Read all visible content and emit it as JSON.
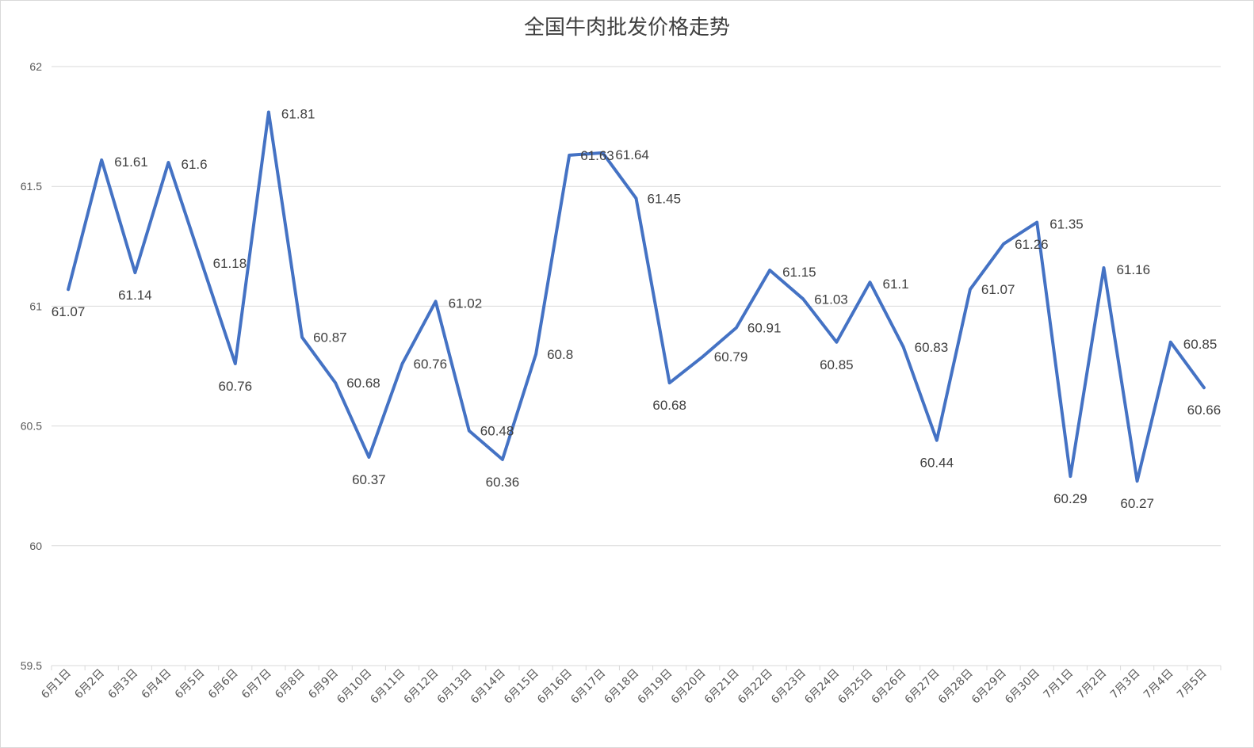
{
  "chart_data": {
    "type": "line",
    "title": "全国牛肉批发价格走势",
    "xlabel": "",
    "ylabel": "",
    "ylim": [
      59.5,
      62
    ],
    "yticks": [
      "59.5",
      "60",
      "60.5",
      "61",
      "61.5",
      "62"
    ],
    "grid": true,
    "legend": "none",
    "categories": [
      "6月1日",
      "6月2日",
      "6月3日",
      "6月4日",
      "6月5日",
      "6月6日",
      "6月7日",
      "6月8日",
      "6月9日",
      "6月10日",
      "6月11日",
      "6月12日",
      "6月13日",
      "6月14日",
      "6月15日",
      "6月16日",
      "6月17日",
      "6月18日",
      "6月19日",
      "6月20日",
      "6月21日",
      "6月22日",
      "6月23日",
      "6月24日",
      "6月25日",
      "6月26日",
      "6月27日",
      "6月28日",
      "6月29日",
      "6月30日",
      "7月1日",
      "7月2日",
      "7月3日",
      "7月4日",
      "7月5日"
    ],
    "series": [
      {
        "values": [
          61.07,
          61.61,
          61.14,
          61.6,
          61.18,
          60.76,
          61.81,
          60.87,
          60.68,
          60.37,
          60.76,
          61.02,
          60.48,
          60.36,
          60.8,
          61.63,
          61.64,
          61.45,
          60.68,
          60.79,
          60.91,
          61.15,
          61.03,
          60.85,
          61.1,
          60.83,
          60.44,
          61.07,
          61.26,
          61.35,
          60.29,
          61.16,
          60.27,
          60.85,
          60.66
        ],
        "labels": [
          "61.07",
          "61.61",
          "61.14",
          "61.6",
          "61.18",
          "60.76",
          "61.81",
          "60.87",
          "60.68",
          "60.37",
          "60.76",
          "61.02",
          "60.48",
          "60.36",
          "60.8",
          "61.63",
          "61.64",
          "61.45",
          "60.68",
          "60.79",
          "60.91",
          "61.15",
          "61.03",
          "60.85",
          "61.1",
          "60.83",
          "60.44",
          "61.07",
          "61.26",
          "61.35",
          "60.29",
          "61.16",
          "60.27",
          "60.85",
          "60.66"
        ]
      }
    ],
    "line_color": "#4472c4",
    "grid_color": "#d9d9d9"
  }
}
